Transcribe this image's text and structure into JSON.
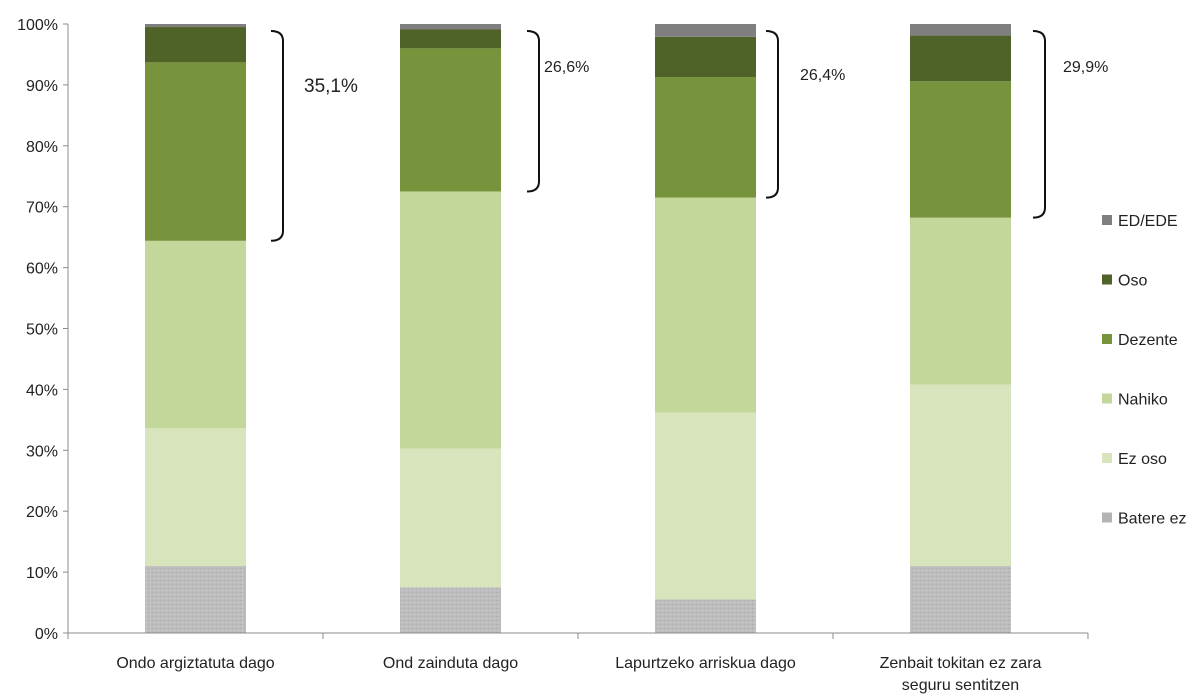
{
  "chart_data": {
    "type": "bar",
    "stacked": true,
    "percent": true,
    "title": "",
    "xlabel": "",
    "ylabel": "",
    "ylim": [
      0,
      100
    ],
    "yticks": [
      "0%",
      "10%",
      "20%",
      "30%",
      "40%",
      "50%",
      "60%",
      "70%",
      "80%",
      "90%",
      "100%"
    ],
    "grid": false,
    "legend_position": "right",
    "categories": [
      [
        "Ondo argiztatuta dago"
      ],
      [
        "Ond zainduta dago"
      ],
      [
        "Lapurtzeko arriskua dago"
      ],
      [
        "Zenbait tokitan ez zara",
        "seguru sentitzen"
      ]
    ],
    "series": [
      {
        "name": "Batere ez",
        "color": "#bcbcbc",
        "values": [
          11.0,
          7.5,
          5.5,
          11.0
        ]
      },
      {
        "name": "Ez oso",
        "color": "#d8e4bc",
        "values": [
          22.6,
          22.8,
          30.7,
          29.8
        ]
      },
      {
        "name": "Nahiko",
        "color": "#c4d79b",
        "values": [
          30.8,
          42.2,
          35.3,
          27.4
        ]
      },
      {
        "name": "Dezente",
        "color": "#77933c",
        "values": [
          29.3,
          23.5,
          19.8,
          22.4
        ]
      },
      {
        "name": "Oso",
        "color": "#4f6228",
        "values": [
          5.8,
          3.1,
          6.6,
          7.5
        ]
      },
      {
        "name": "ED/EDE",
        "color": "#7f7f7f",
        "values": [
          0.5,
          0.9,
          2.1,
          1.9
        ]
      }
    ],
    "annotations": [
      "35,1%",
      "26,6%",
      "26,4%",
      "29,9%"
    ]
  }
}
